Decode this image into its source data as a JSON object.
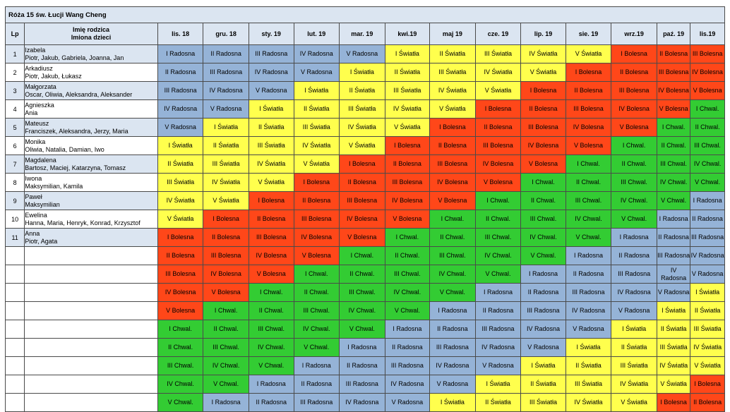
{
  "title": "Róża 15 św. Łucji Wang Cheng",
  "header": {
    "lp": "Lp",
    "name_line1": "Imię rodzica",
    "name_line2": "Imiona dzieci",
    "months": [
      "lis. 18",
      "gru. 18",
      "sty. 19",
      "lut. 19",
      "mar. 19",
      "kwi.19",
      "maj 19",
      "cze. 19",
      "lip. 19",
      "sie. 19",
      "wrz.19",
      "paź. 19",
      "lis.19"
    ]
  },
  "colors": {
    "Radosna": "#95b3d7",
    "Światła": "#ffff4d",
    "Bolesna": "#ff4719",
    "Chwal": "#33cc33",
    "header": "#dbe5f1"
  },
  "rows": [
    {
      "lp": "1",
      "parent": "Izabela",
      "children": "Piotr, Jakub, Gabriela, Joanna, Jan",
      "cells": [
        "I Radosna",
        "II Radosna",
        "III Radosna",
        "IV Radosna",
        "V Radosna",
        "I Światła",
        "II Światła",
        "III Światła",
        "IV Światła",
        "V Światła",
        "I Bolesna",
        "II Bolesna",
        "III Bolesna"
      ]
    },
    {
      "lp": "2",
      "parent": "Arkadiusz",
      "children": "Piotr, Jakub, Łukasz",
      "cells": [
        "II Radosna",
        "III Radosna",
        "IV Radosna",
        "V Radosna",
        "I Światła",
        "II Światła",
        "III Światła",
        "IV Światła",
        "V Światła",
        "I Bolesna",
        "II Bolesna",
        "III Bolesna",
        "IV Bolesna"
      ]
    },
    {
      "lp": "3",
      "parent": "Małgorzata",
      "children": "Oscar, Oliwia, Aleksandra, Aleksander",
      "cells": [
        "III Radosna",
        "IV Radosna",
        "V Radosna",
        "I Światła",
        "II Światła",
        "III Światła",
        "IV Światła",
        "V Światła",
        "I Bolesna",
        "II Bolesna",
        "III Bolesna",
        "IV Bolesna",
        "V Bolesna"
      ]
    },
    {
      "lp": "4",
      "parent": "Agnieszka",
      "children": "Ania",
      "cells": [
        "IV Radosna",
        "V Radosna",
        "I Światła",
        "II Światła",
        "III Światła",
        "IV Światła",
        "V Światła",
        "I Bolesna",
        "II Bolesna",
        "III Bolesna",
        "IV Bolesna",
        "V Bolesna",
        "I Chwal."
      ]
    },
    {
      "lp": "5",
      "parent": "Mateusz",
      "children": "Franciszek, Aleksandra, Jerzy, Maria",
      "cells": [
        "V Radosna",
        "I Światła",
        "II Światła",
        "III Światła",
        "IV Światła",
        "V Światła",
        "I Bolesna",
        "II Bolesna",
        "III Bolesna",
        "IV Bolesna",
        "V Bolesna",
        "I Chwal.",
        "II Chwal."
      ]
    },
    {
      "lp": "6",
      "parent": "Monika",
      "children": "Oliwia, Natalia, Damian, Iwo",
      "cells": [
        "I Światła",
        "II Światła",
        "III Światła",
        "IV Światła",
        "V Światła",
        "I Bolesna",
        "II Bolesna",
        "III Bolesna",
        "IV Bolesna",
        "V Bolesna",
        "I Chwal.",
        "II Chwal.",
        "III Chwal."
      ]
    },
    {
      "lp": "7",
      "parent": "Magdalena",
      "children": "Bartosz, Maciej, Katarzyna, Tomasz",
      "cells": [
        "II Światła",
        "III Światła",
        "IV Światła",
        "V Światła",
        "I Bolesna",
        "II Bolesna",
        "III Bolesna",
        "IV Bolesna",
        "V Bolesna",
        "I Chwal.",
        "II Chwal.",
        "III Chwal.",
        "IV Chwal."
      ]
    },
    {
      "lp": "8",
      "parent": "Iwona",
      "children": "Maksymilian, Kamila",
      "cells": [
        "III Światła",
        "IV Światła",
        "V Światła",
        "I Bolesna",
        "II Bolesna",
        "III Bolesna",
        "IV Bolesna",
        "V Bolesna",
        "I Chwal.",
        "II Chwal.",
        "III Chwal.",
        "IV Chwal.",
        "V Chwal."
      ]
    },
    {
      "lp": "9",
      "parent": "Paweł",
      "children": "Maksymilian",
      "cells": [
        "IV Światła",
        "V Światła",
        "I Bolesna",
        "II Bolesna",
        "III Bolesna",
        "IV Bolesna",
        "V Bolesna",
        "I Chwal.",
        "II Chwal.",
        "III Chwal.",
        "IV Chwal.",
        "V Chwal.",
        "I Radosna"
      ]
    },
    {
      "lp": "10",
      "parent": "Ewelina",
      "children": "Hanna, Maria, Henryk, Konrad, Krzysztof",
      "cells": [
        "V Światła",
        "I Bolesna",
        "II Bolesna",
        "III Bolesna",
        "IV Bolesna",
        "V Bolesna",
        "I Chwal.",
        "II Chwal.",
        "III Chwal.",
        "IV Chwal.",
        "V Chwal.",
        "I Radosna",
        "II Radosna"
      ]
    },
    {
      "lp": "11",
      "parent": "Anna",
      "children": "Piotr, Agata",
      "cells": [
        "I Bolesna",
        "II Bolesna",
        "III Bolesna",
        "IV Bolesna",
        "V Bolesna",
        "I Chwal.",
        "II Chwal.",
        "III Chwal.",
        "IV Chwal.",
        "V Chwal.",
        "I Radosna",
        "II Radosna",
        "III Radosna"
      ]
    },
    {
      "lp": "",
      "parent": "",
      "children": "",
      "cells": [
        "II Bolesna",
        "III Bolesna",
        "IV Bolesna",
        "V Bolesna",
        "I Chwal.",
        "II Chwal.",
        "III Chwal.",
        "IV Chwal.",
        "V Chwal.",
        "I Radosna",
        "II Radosna",
        "III Radosna",
        "IV Radosna"
      ]
    },
    {
      "lp": "",
      "parent": "",
      "children": "",
      "cells": [
        "III Bolesna",
        "IV Bolesna",
        "V Bolesna",
        "I Chwal.",
        "II Chwal.",
        "III Chwal.",
        "IV Chwal.",
        "V Chwal.",
        "I Radosna",
        "II Radosna",
        "III Radosna",
        "IV Radosna",
        "V Radosna"
      ]
    },
    {
      "lp": "",
      "parent": "",
      "children": "",
      "cells": [
        "IV Bolesna",
        "V Bolesna",
        "I Chwal.",
        "II Chwal.",
        "III Chwal.",
        "IV Chwal.",
        "V Chwal.",
        "I Radosna",
        "II Radosna",
        "III Radosna",
        "IV Radosna",
        "V Radosna",
        "I Światła"
      ]
    },
    {
      "lp": "",
      "parent": "",
      "children": "",
      "cells": [
        "V Bolesna",
        "I Chwal.",
        "II Chwal.",
        "III Chwal.",
        "IV Chwal.",
        "V Chwal.",
        "I Radosna",
        "II Radosna",
        "III Radosna",
        "IV Radosna",
        "V Radosna",
        "I Światła",
        "II Światła"
      ]
    },
    {
      "lp": "",
      "parent": "",
      "children": "",
      "cells": [
        "I Chwal.",
        "II Chwal.",
        "III Chwal.",
        "IV Chwal.",
        "V Chwal.",
        "I Radosna",
        "II Radosna",
        "III Radosna",
        "IV Radosna",
        "V Radosna",
        "I Światła",
        "II Światła",
        "III Światła"
      ]
    },
    {
      "lp": "",
      "parent": "",
      "children": "",
      "cells": [
        "II Chwal.",
        "III Chwal.",
        "IV Chwal.",
        "V Chwal.",
        "I Radosna",
        "II Radosna",
        "III Radosna",
        "IV Radosna",
        "V Radosna",
        "I Światła",
        "II Światła",
        "III Światła",
        "IV Światła"
      ]
    },
    {
      "lp": "",
      "parent": "",
      "children": "",
      "cells": [
        "III Chwal.",
        "IV Chwal.",
        "V Chwal.",
        "I Radosna",
        "II Radosna",
        "III Radosna",
        "IV Radosna",
        "V Radosna",
        "I Światła",
        "II Światła",
        "III Światła",
        "IV Światła",
        "V Światła"
      ]
    },
    {
      "lp": "",
      "parent": "",
      "children": "",
      "cells": [
        "IV Chwal.",
        "V Chwal.",
        "I Radosna",
        "II Radosna",
        "III Radosna",
        "IV Radosna",
        "V Radosna",
        "I Światła",
        "II Światła",
        "III Światła",
        "IV Światła",
        "V Światła",
        "I Bolesna"
      ]
    },
    {
      "lp": "",
      "parent": "",
      "children": "",
      "cells": [
        "V Chwal.",
        "I Radosna",
        "II Radosna",
        "III Radosna",
        "IV Radosna",
        "V Radosna",
        "I Światła",
        "II Światła",
        "III Światła",
        "IV Światła",
        "V Światła",
        "I Bolesna",
        "II Bolesna"
      ]
    }
  ]
}
